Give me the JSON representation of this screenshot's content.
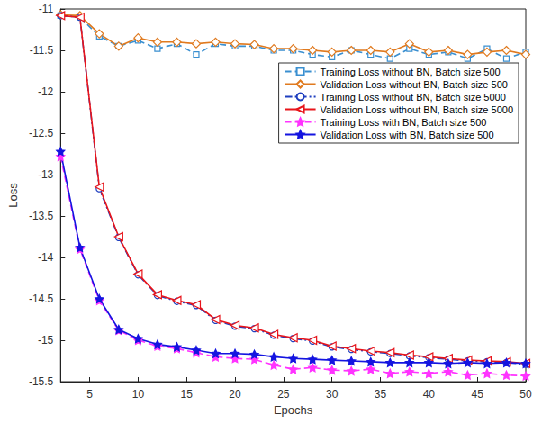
{
  "chart_data": {
    "type": "line",
    "x_label": "Epochs",
    "y_label": "Loss",
    "x": [
      2,
      4,
      6,
      8,
      10,
      12,
      14,
      16,
      18,
      20,
      22,
      24,
      26,
      28,
      30,
      32,
      34,
      36,
      38,
      40,
      42,
      44,
      46,
      48,
      50
    ],
    "xlim": [
      2,
      50
    ],
    "xticks": [
      5,
      10,
      15,
      20,
      25,
      30,
      35,
      40,
      45,
      50
    ],
    "ylim": [
      -15.5,
      -11
    ],
    "yticks": [
      -15.5,
      -15,
      -14.5,
      -14,
      -13.5,
      -13,
      -12.5,
      -12,
      -11.5,
      -11
    ],
    "grid": false,
    "legend": "upper right",
    "series": [
      {
        "name": "Training Loss without BN, Batch size 500",
        "color": "#3a8fd0",
        "marker": "square",
        "line_style": "dashed",
        "values": [
          -11.08,
          -11.1,
          -11.33,
          -11.45,
          -11.38,
          -11.48,
          -11.42,
          -11.55,
          -11.42,
          -11.45,
          -11.45,
          -11.5,
          -11.5,
          -11.55,
          -11.58,
          -11.5,
          -11.55,
          -11.6,
          -11.48,
          -11.55,
          -11.52,
          -11.6,
          -11.48,
          -11.6,
          -11.52
        ]
      },
      {
        "name": "Validation Loss without BN, Batch size 500",
        "color": "#e07a1f",
        "marker": "diamond",
        "line_style": "solid",
        "values": [
          -11.07,
          -11.08,
          -11.3,
          -11.45,
          -11.35,
          -11.4,
          -11.4,
          -11.42,
          -11.4,
          -11.42,
          -11.43,
          -11.48,
          -11.48,
          -11.5,
          -11.52,
          -11.5,
          -11.5,
          -11.52,
          -11.42,
          -11.52,
          -11.5,
          -11.55,
          -11.52,
          -11.5,
          -11.55
        ]
      },
      {
        "name": "Training Loss without BN, Batch size 5000",
        "color": "#1f3fbf",
        "marker": "circle",
        "line_style": "dash-dot",
        "values": [
          -11.08,
          -11.1,
          -13.17,
          -13.76,
          -14.21,
          -14.46,
          -14.53,
          -14.58,
          -14.76,
          -14.83,
          -14.86,
          -14.94,
          -14.98,
          -15.01,
          -15.08,
          -15.11,
          -15.14,
          -15.16,
          -15.19,
          -15.21,
          -15.23,
          -15.25,
          -15.26,
          -15.27,
          -15.29
        ]
      },
      {
        "name": "Validation Loss without BN, Batch size 5000",
        "color": "#e8141a",
        "marker": "triangle-left",
        "line_style": "solid",
        "values": [
          -11.08,
          -11.1,
          -13.15,
          -13.75,
          -14.2,
          -14.45,
          -14.52,
          -14.57,
          -14.75,
          -14.82,
          -14.85,
          -14.93,
          -14.97,
          -15.0,
          -15.07,
          -15.1,
          -15.13,
          -15.15,
          -15.18,
          -15.2,
          -15.22,
          -15.24,
          -15.25,
          -15.26,
          -15.28
        ]
      },
      {
        "name": "Training Loss with BN, Batch size 500",
        "color": "#ff33ff",
        "marker": "star",
        "line_style": "dashed",
        "values": [
          -12.78,
          -13.9,
          -14.52,
          -14.88,
          -15.0,
          -15.07,
          -15.1,
          -15.15,
          -15.2,
          -15.22,
          -15.23,
          -15.3,
          -15.35,
          -15.33,
          -15.36,
          -15.37,
          -15.35,
          -15.4,
          -15.38,
          -15.4,
          -15.38,
          -15.42,
          -15.4,
          -15.42,
          -15.43
        ]
      },
      {
        "name": "Validation Loss with BN, Batch size 500",
        "color": "#1414e0",
        "marker": "star",
        "line_style": "solid",
        "values": [
          -12.72,
          -13.88,
          -14.5,
          -14.87,
          -14.98,
          -15.05,
          -15.08,
          -15.12,
          -15.16,
          -15.16,
          -15.17,
          -15.2,
          -15.22,
          -15.23,
          -15.24,
          -15.25,
          -15.26,
          -15.27,
          -15.27,
          -15.27,
          -15.28,
          -15.27,
          -15.28,
          -15.27,
          -15.28
        ]
      }
    ]
  }
}
